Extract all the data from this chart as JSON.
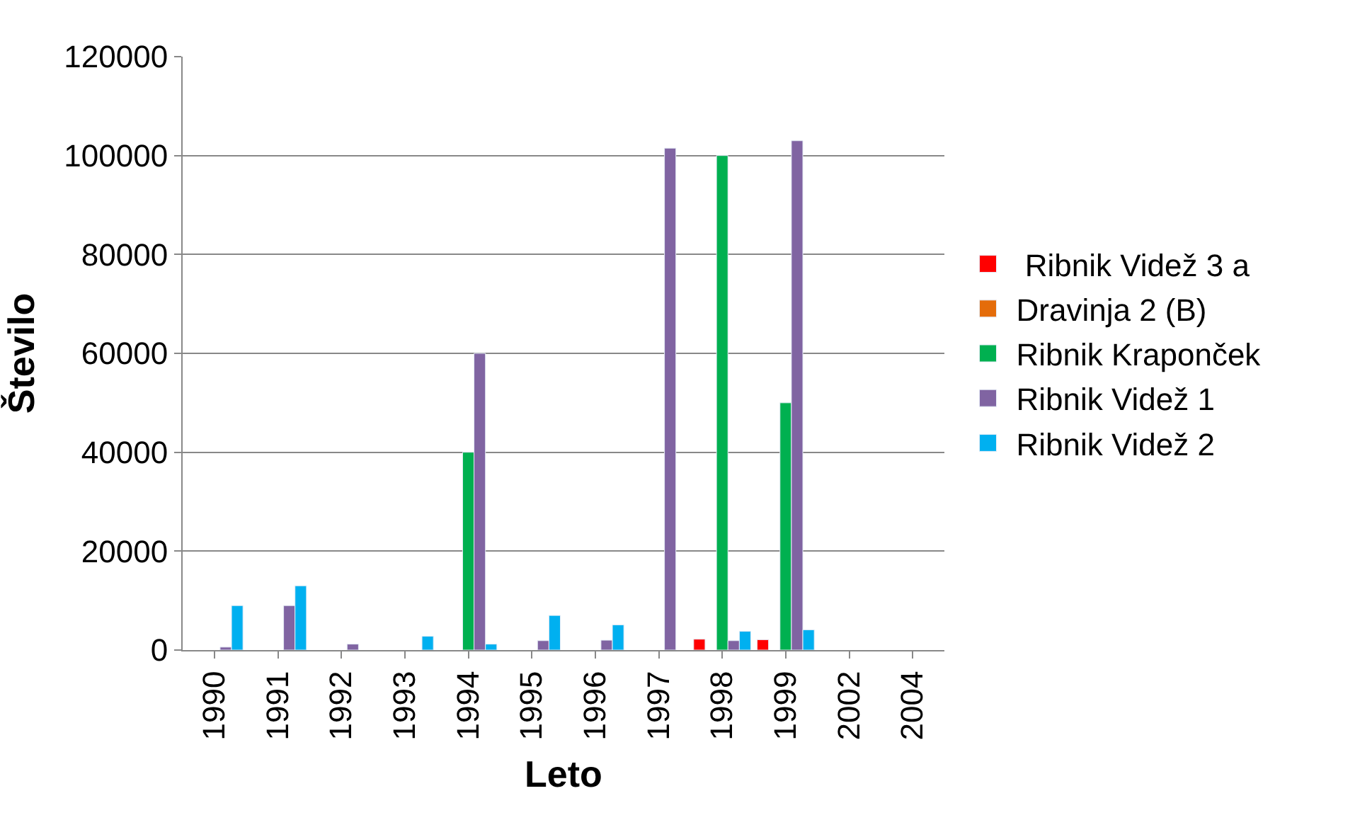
{
  "chart_data": {
    "type": "bar",
    "xlabel": "Leto",
    "ylabel": "Število",
    "categories": [
      "1990",
      "1991",
      "1992",
      "1993",
      "1994",
      "1995",
      "1996",
      "1997",
      "1998",
      "1999",
      "2002",
      "2004"
    ],
    "series": [
      {
        "name": " Ribnik Videž 3 a",
        "color": "#ff0000",
        "values": [
          null,
          null,
          null,
          null,
          null,
          null,
          null,
          null,
          2200,
          2100,
          null,
          null
        ]
      },
      {
        "name": "Dravinja 2 (B)",
        "color": "#e46c0a",
        "values": [
          null,
          null,
          null,
          null,
          null,
          null,
          null,
          null,
          null,
          null,
          null,
          null
        ]
      },
      {
        "name": "Ribnik Kraponček",
        "color": "#00b050",
        "values": [
          null,
          null,
          null,
          null,
          40000,
          null,
          null,
          null,
          100000,
          50000,
          null,
          null
        ]
      },
      {
        "name": "Ribnik Videž 1",
        "color": "#8064a2",
        "values": [
          600,
          9000,
          1200,
          null,
          60000,
          1900,
          2000,
          101500,
          1900,
          103000,
          null,
          null
        ]
      },
      {
        "name": "Ribnik Videž 2",
        "color": "#00b0f0",
        "values": [
          9000,
          13000,
          null,
          2800,
          1200,
          7000,
          5100,
          null,
          3800,
          4100,
          null,
          null
        ]
      }
    ],
    "ylim": [
      0,
      120000
    ],
    "yticks": [
      0,
      20000,
      40000,
      60000,
      80000,
      100000,
      120000
    ],
    "grid": "y",
    "legend": "right"
  }
}
